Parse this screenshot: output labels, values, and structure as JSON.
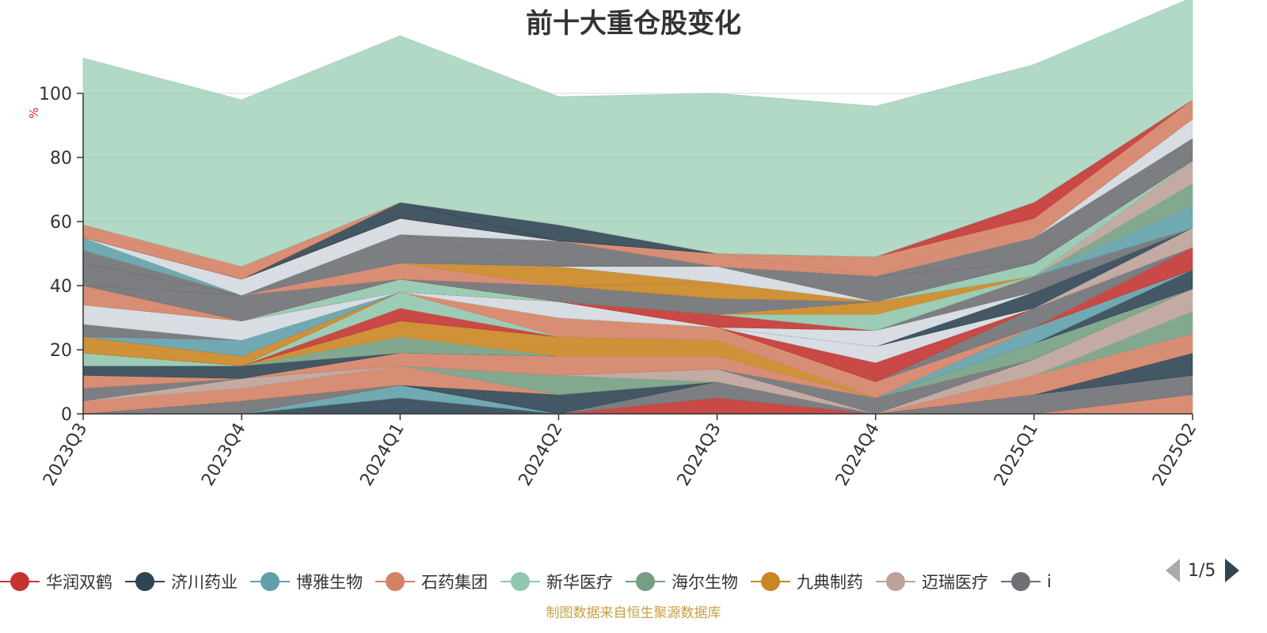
{
  "chart_data": {
    "type": "area",
    "title": "前十大重仓股变化",
    "y_unit": "%",
    "ylim": [
      0,
      100
    ],
    "y_ticks": [
      0,
      20,
      40,
      60,
      80,
      100
    ],
    "grid": true,
    "stacked": true,
    "legend_position": "bottom",
    "categories": [
      "2023Q3",
      "2023Q4",
      "2024Q1",
      "2024Q2",
      "2024Q3",
      "2024Q4",
      "2025Q1",
      "2025Q2"
    ],
    "layers": [
      {
        "values": [
          0,
          0,
          5,
          0,
          0,
          0,
          0,
          0
        ],
        "color": "#2f4554"
      },
      {
        "values": [
          0,
          0,
          4,
          0,
          0,
          0,
          0,
          0
        ],
        "color": "#61a0a8"
      },
      {
        "values": [
          0,
          0,
          0,
          0,
          5,
          0,
          0,
          0
        ],
        "color": "#c23531"
      },
      {
        "values": [
          0,
          0,
          0,
          0,
          0,
          0,
          0,
          6
        ],
        "color": "#d48265"
      },
      {
        "values": [
          0,
          4,
          0,
          0,
          5,
          0,
          6,
          6
        ],
        "color": "#6e7074"
      },
      {
        "values": [
          0,
          0,
          0,
          6,
          0,
          0,
          0,
          7
        ],
        "color": "#2f4554"
      },
      {
        "values": [
          4,
          4,
          6,
          0,
          0,
          0,
          6,
          6
        ],
        "color": "#d48265"
      },
      {
        "values": [
          0,
          0,
          0,
          6,
          0,
          0,
          0,
          7
        ],
        "color": "#749f83"
      },
      {
        "values": [
          0,
          3,
          0,
          0,
          4,
          0,
          5,
          7
        ],
        "color": "#bda29a"
      },
      {
        "values": [
          4,
          0,
          0,
          0,
          0,
          5,
          0,
          0
        ],
        "color": "#6e7074"
      },
      {
        "values": [
          0,
          0,
          0,
          0,
          0,
          0,
          5,
          0
        ],
        "color": "#749f83"
      },
      {
        "values": [
          4,
          0,
          4,
          6,
          4,
          0,
          0,
          0
        ],
        "color": "#d48265"
      },
      {
        "values": [
          3,
          4,
          0,
          0,
          0,
          0,
          0,
          6
        ],
        "color": "#2f4554"
      },
      {
        "values": [
          0,
          0,
          5,
          0,
          0,
          0,
          0,
          0
        ],
        "color": "#749f83"
      },
      {
        "values": [
          0,
          0,
          0,
          0,
          0,
          0,
          5,
          0
        ],
        "color": "#61a0a8"
      },
      {
        "values": [
          4,
          0,
          0,
          0,
          0,
          0,
          0,
          0
        ],
        "color": "#91c7ae"
      },
      {
        "values": [
          0,
          0,
          5,
          6,
          5,
          0,
          0,
          0
        ],
        "color": "#ca8622"
      },
      {
        "values": [
          0,
          0,
          4,
          0,
          0,
          0,
          0,
          0
        ],
        "color": "#c23531"
      },
      {
        "values": [
          0,
          0,
          0,
          0,
          0,
          0,
          0,
          7
        ],
        "color": "#c23531"
      },
      {
        "values": [
          0,
          0,
          5,
          0,
          0,
          0,
          0,
          0
        ],
        "color": "#91c7ae"
      },
      {
        "values": [
          0,
          0,
          0,
          6,
          4,
          5,
          0,
          0
        ],
        "color": "#d48265"
      },
      {
        "values": [
          0,
          0,
          0,
          0,
          0,
          0,
          6,
          0
        ],
        "color": "#6e7074"
      },
      {
        "values": [
          5,
          3,
          0,
          0,
          0,
          0,
          0,
          0
        ],
        "color": "#ca8622"
      },
      {
        "values": [
          0,
          0,
          0,
          0,
          0,
          6,
          0,
          0
        ],
        "color": "#c23531"
      },
      {
        "values": [
          0,
          5,
          0,
          0,
          0,
          0,
          0,
          0
        ],
        "color": "#61a0a8"
      },
      {
        "values": [
          0,
          0,
          0,
          0,
          0,
          5,
          0,
          0
        ],
        "color": "#d3d9e0"
      },
      {
        "values": [
          4,
          0,
          0,
          0,
          0,
          0,
          0,
          0
        ],
        "color": "#6e7074"
      },
      {
        "values": [
          0,
          0,
          0,
          0,
          0,
          0,
          0,
          6
        ],
        "color": "#bda29a"
      },
      {
        "values": [
          0,
          0,
          0,
          0,
          0,
          0,
          5,
          0
        ],
        "color": "#2f4554"
      },
      {
        "values": [
          0,
          0,
          0,
          0,
          0,
          5,
          0,
          0
        ],
        "color": "#d3d9e0"
      },
      {
        "values": [
          0,
          0,
          0,
          0,
          0,
          0,
          5,
          0
        ],
        "color": "#6e7074"
      },
      {
        "values": [
          0,
          0,
          0,
          0,
          0,
          0,
          0,
          7
        ],
        "color": "#61a0a8"
      },
      {
        "values": [
          6,
          6,
          0,
          0,
          0,
          0,
          0,
          0
        ],
        "color": "#d3d9e0"
      },
      {
        "values": [
          0,
          0,
          0,
          0,
          0,
          0,
          0,
          7
        ],
        "color": "#749f83"
      },
      {
        "values": [
          0,
          0,
          0,
          5,
          0,
          0,
          0,
          0
        ],
        "color": "#d3d9e0"
      },
      {
        "values": [
          0,
          0,
          0,
          0,
          0,
          0,
          0,
          7
        ],
        "color": "#bda29a"
      },
      {
        "values": [
          0,
          0,
          0,
          0,
          4,
          0,
          0,
          0
        ],
        "color": "#c23531"
      },
      {
        "values": [
          0,
          0,
          4,
          0,
          0,
          0,
          0,
          0
        ],
        "color": "#91c7ae"
      },
      {
        "values": [
          0,
          0,
          0,
          0,
          0,
          5,
          0,
          0
        ],
        "color": "#91c7ae"
      },
      {
        "values": [
          0,
          0,
          0,
          0,
          0,
          4,
          0,
          0
        ],
        "color": "#ca8622"
      },
      {
        "values": [
          0,
          0,
          0,
          5,
          0,
          0,
          0,
          0
        ],
        "color": "#6e7074"
      },
      {
        "values": [
          0,
          0,
          0,
          0,
          0,
          0,
          4,
          0
        ],
        "color": "#91c7ae"
      },
      {
        "values": [
          0,
          0,
          0,
          0,
          5,
          0,
          0,
          0
        ],
        "color": "#6e7074"
      },
      {
        "values": [
          0,
          0,
          0,
          0,
          5,
          0,
          0,
          0
        ],
        "color": "#ca8622"
      },
      {
        "values": [
          6,
          0,
          0,
          0,
          0,
          0,
          0,
          0
        ],
        "color": "#d48265"
      },
      {
        "values": [
          0,
          8,
          0,
          0,
          0,
          0,
          0,
          0
        ],
        "color": "#6e7074"
      },
      {
        "values": [
          7,
          0,
          0,
          0,
          0,
          0,
          0,
          0
        ],
        "color": "#6e7074"
      },
      {
        "values": [
          0,
          0,
          5,
          0,
          0,
          0,
          0,
          0
        ],
        "color": "#d48265"
      },
      {
        "values": [
          0,
          0,
          0,
          6,
          0,
          0,
          0,
          0
        ],
        "color": "#ca8622"
      },
      {
        "values": [
          0,
          0,
          0,
          0,
          0,
          0,
          0,
          7
        ],
        "color": "#6e7074"
      },
      {
        "values": [
          0,
          0,
          0,
          0,
          5,
          0,
          0,
          0
        ],
        "color": "#d3d9e0"
      },
      {
        "values": [
          0,
          0,
          0,
          0,
          0,
          8,
          0,
          0
        ],
        "color": "#6e7074"
      },
      {
        "values": [
          0,
          0,
          0,
          0,
          0,
          0,
          8,
          0
        ],
        "color": "#6e7074"
      },
      {
        "values": [
          4,
          0,
          0,
          0,
          0,
          0,
          0,
          0
        ],
        "color": "#6e7074"
      },
      {
        "values": [
          0,
          0,
          0,
          0,
          0,
          0,
          0,
          6
        ],
        "color": "#d3d9e0"
      },
      {
        "values": [
          0,
          0,
          9,
          0,
          0,
          0,
          0,
          0
        ],
        "color": "#6e7074"
      },
      {
        "values": [
          0,
          0,
          0,
          8,
          0,
          0,
          0,
          0
        ],
        "color": "#6e7074"
      },
      {
        "values": [
          0,
          0,
          0,
          0,
          0,
          0,
          0,
          6
        ],
        "color": "#d48265"
      },
      {
        "values": [
          4,
          0,
          0,
          0,
          0,
          0,
          0,
          0
        ],
        "color": "#61a0a8"
      },
      {
        "values": [
          0,
          5,
          5,
          0,
          0,
          0,
          0,
          0
        ],
        "color": "#d3d9e0"
      },
      {
        "values": [
          0,
          0,
          0,
          0,
          0,
          0,
          6,
          0
        ],
        "color": "#d48265"
      },
      {
        "values": [
          0,
          0,
          0,
          0,
          4,
          0,
          0,
          0
        ],
        "color": "#d48265"
      },
      {
        "values": [
          0,
          0,
          0,
          0,
          0,
          6,
          0,
          0
        ],
        "color": "#d48265"
      },
      {
        "values": [
          0,
          0,
          0,
          0,
          0,
          0,
          5,
          0
        ],
        "color": "#c23531"
      },
      {
        "values": [
          0,
          0,
          5,
          0,
          0,
          0,
          0,
          0
        ],
        "color": "#2f4554"
      },
      {
        "values": [
          0,
          0,
          0,
          5,
          0,
          0,
          0,
          0
        ],
        "color": "#2f4554"
      },
      {
        "values": [
          4,
          0,
          0,
          0,
          0,
          0,
          0,
          0
        ],
        "color": "#d48265"
      },
      {
        "values": [
          0,
          4,
          0,
          0,
          0,
          0,
          0,
          0
        ],
        "color": "#d48265"
      },
      {
        "values": [
          52,
          52,
          52,
          40,
          50,
          47,
          43,
          32
        ],
        "color": "#91c7ae"
      }
    ]
  },
  "legend": {
    "items": [
      {
        "label": "华润双鹤",
        "color": "#c23531"
      },
      {
        "label": "济川药业",
        "color": "#2f4554"
      },
      {
        "label": "博雅生物",
        "color": "#61a0a8"
      },
      {
        "label": "石药集团",
        "color": "#d48265"
      },
      {
        "label": "新华医疗",
        "color": "#91c7ae"
      },
      {
        "label": "海尔生物",
        "color": "#749f83"
      },
      {
        "label": "九典制药",
        "color": "#ca8622"
      },
      {
        "label": "迈瑞医疗",
        "color": "#bda29a"
      },
      {
        "label": "i",
        "color": "#6e7074"
      }
    ],
    "page": "1/5"
  },
  "source_note": "制图数据来自恒生聚源数据库"
}
